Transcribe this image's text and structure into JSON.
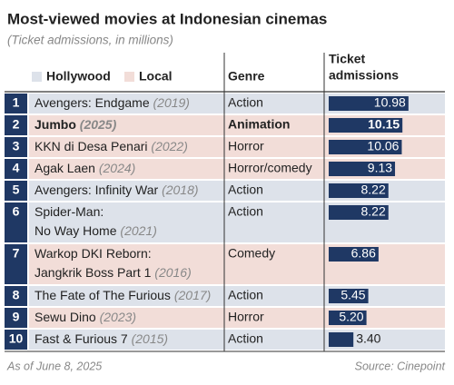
{
  "chart_data": {
    "type": "bar",
    "title": "Most-viewed movies at Indonesian cinemas",
    "subtitle": "(Ticket admissions, in millions)",
    "legend": [
      {
        "name": "Hollywood",
        "color": "#dde2ea"
      },
      {
        "name": "Local",
        "color": "#f2ddd8"
      }
    ],
    "genre_header": "Genre",
    "value_header": [
      "Ticket",
      "admissions"
    ],
    "ranks": [
      1,
      2,
      3,
      4,
      5,
      6,
      7,
      8,
      9,
      10
    ],
    "titles": [
      [
        "Avengers: Endgame"
      ],
      [
        "Jumbo"
      ],
      [
        "KKN di Desa Penari"
      ],
      [
        "Agak Laen"
      ],
      [
        "Avengers: Infinity War"
      ],
      [
        "Spider-Man:",
        "No Way Home"
      ],
      [
        "Warkop DKI Reborn:",
        "Jangkrik Boss Part 1"
      ],
      [
        "The Fate of The Furious"
      ],
      [
        "Sewu Dino"
      ],
      [
        "Fast & Furious 7"
      ]
    ],
    "years": [
      "(2019)",
      "(2025)",
      "(2022)",
      "(2024)",
      "(2018)",
      "(2021)",
      "(2016)",
      "(2017)",
      "(2023)",
      "(2015)"
    ],
    "genres": [
      "Action",
      "Animation",
      "Horror",
      "Horror/comedy",
      "Action",
      "Action",
      "Comedy",
      "Action",
      "Horror",
      "Action"
    ],
    "origin": [
      0,
      1,
      1,
      1,
      0,
      0,
      1,
      0,
      1,
      0
    ],
    "bold_row": 1,
    "values": [
      10.98,
      10.15,
      10.06,
      9.13,
      8.22,
      8.22,
      6.86,
      5.45,
      5.2,
      3.4
    ],
    "value_labels": [
      "10.98",
      "10.15",
      "10.06",
      "9.13",
      "8.22",
      "8.22",
      "6.86",
      "5.45",
      "5.20",
      "3.40"
    ],
    "color": "#1f3864",
    "xlim": [
      0,
      11
    ],
    "note": "As of June 8, 2025",
    "source": "Source: Cinepoint"
  }
}
